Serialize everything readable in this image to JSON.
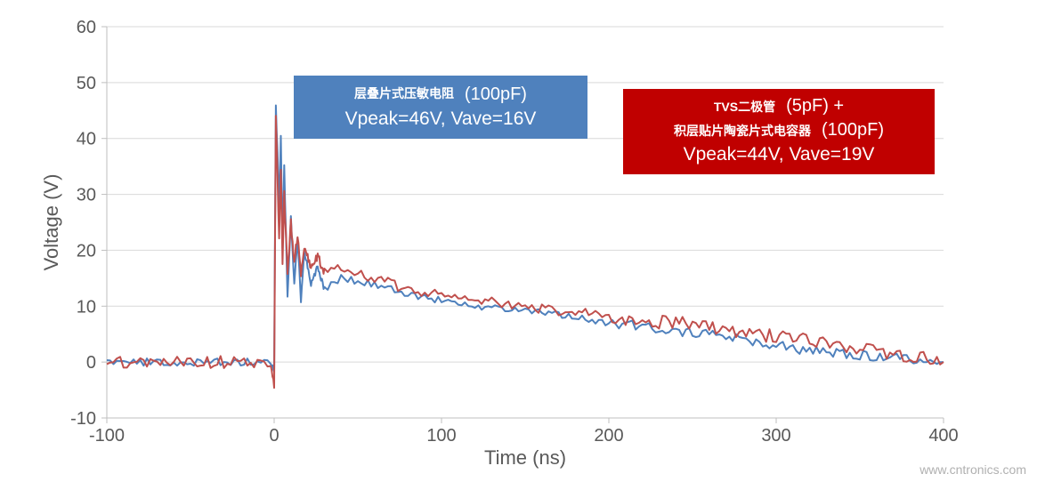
{
  "chart": {
    "type": "line",
    "xlabel": "Time (ns)",
    "ylabel": "Voltage (V)",
    "xlim": [
      -100,
      400
    ],
    "ylim": [
      -10,
      60
    ],
    "xtick_step": 100,
    "ytick_step": 10,
    "xticks": [
      -100,
      0,
      100,
      200,
      300,
      400
    ],
    "yticks": [
      -10,
      0,
      10,
      20,
      30,
      40,
      50,
      60
    ],
    "background_color": "#ffffff",
    "grid_color": "#d9d9d9",
    "axis_color": "#bfbfbf",
    "tick_font_color": "#595959",
    "tick_fontsize": 20,
    "axis_title_fontsize": 22,
    "line_width": 2,
    "series": [
      {
        "name": "blue",
        "color": "#4f81bd",
        "noise_amp": 0.6,
        "keypoints": [
          [
            -100,
            0
          ],
          [
            -2,
            0
          ],
          [
            0,
            -2
          ],
          [
            1,
            46
          ],
          [
            3,
            28
          ],
          [
            4,
            40
          ],
          [
            5,
            20
          ],
          [
            6,
            35
          ],
          [
            8,
            12
          ],
          [
            10,
            26
          ],
          [
            12,
            14
          ],
          [
            14,
            22
          ],
          [
            16,
            11
          ],
          [
            18,
            20
          ],
          [
            22,
            14
          ],
          [
            26,
            17
          ],
          [
            30,
            13
          ],
          [
            40,
            15
          ],
          [
            60,
            14
          ],
          [
            80,
            12
          ],
          [
            100,
            11
          ],
          [
            120,
            10
          ],
          [
            140,
            9.5
          ],
          [
            160,
            9
          ],
          [
            180,
            8
          ],
          [
            200,
            7
          ],
          [
            220,
            6.5
          ],
          [
            240,
            5.5
          ],
          [
            260,
            5
          ],
          [
            280,
            4
          ],
          [
            300,
            3
          ],
          [
            320,
            2
          ],
          [
            340,
            1.5
          ],
          [
            360,
            1
          ],
          [
            380,
            0.5
          ],
          [
            400,
            0
          ]
        ]
      },
      {
        "name": "red",
        "color": "#c0504d",
        "noise_amp": 0.9,
        "keypoints": [
          [
            -100,
            0
          ],
          [
            -2,
            0
          ],
          [
            0,
            -4
          ],
          [
            1,
            44
          ],
          [
            3,
            22
          ],
          [
            4,
            35
          ],
          [
            5,
            18
          ],
          [
            6,
            30
          ],
          [
            8,
            16
          ],
          [
            10,
            25
          ],
          [
            12,
            18
          ],
          [
            14,
            23
          ],
          [
            16,
            16
          ],
          [
            18,
            21
          ],
          [
            22,
            17
          ],
          [
            26,
            19
          ],
          [
            30,
            16
          ],
          [
            40,
            17
          ],
          [
            60,
            15
          ],
          [
            80,
            13
          ],
          [
            100,
            12
          ],
          [
            120,
            11
          ],
          [
            140,
            10.5
          ],
          [
            160,
            9.5
          ],
          [
            180,
            9
          ],
          [
            200,
            8
          ],
          [
            220,
            7.5
          ],
          [
            240,
            7
          ],
          [
            260,
            6.5
          ],
          [
            280,
            5.5
          ],
          [
            300,
            4.5
          ],
          [
            320,
            4
          ],
          [
            340,
            3
          ],
          [
            360,
            2
          ],
          [
            380,
            1
          ],
          [
            400,
            0
          ]
        ]
      }
    ]
  },
  "callouts": {
    "blue": {
      "line1_zh": "层叠片式压敏电阻",
      "line1_pf": "(100pF)",
      "line2": "Vpeak=46V, Vave=16V",
      "bg": "#4f81bd"
    },
    "red": {
      "line1_zh": "TVS二极管",
      "line1_pf": "(5pF) +",
      "line2_zh": "积层贴片陶瓷片式电容器",
      "line2_pf": "(100pF)",
      "line3": "Vpeak=44V, Vave=19V",
      "bg": "#c00000"
    }
  },
  "watermark": "www.cntronics.com"
}
